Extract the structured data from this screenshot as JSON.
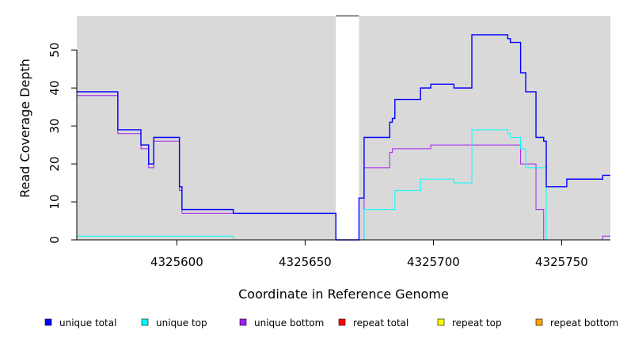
{
  "chart_data": {
    "type": "line",
    "xlabel": "Coordinate in Reference Genome",
    "ylabel": "Read Coverage Depth",
    "xlim": [
      4325561,
      4325769
    ],
    "ylim": [
      0,
      59
    ],
    "x_ticks": [
      4325600,
      4325650,
      4325700,
      4325750
    ],
    "y_ticks": [
      0,
      10,
      20,
      30,
      40,
      50
    ],
    "gap": [
      4325662,
      4325671
    ],
    "grid": false,
    "legend_position": "bottom",
    "series": [
      {
        "name": "unique total",
        "color": "#0000ff",
        "steps": [
          [
            4325561,
            39
          ],
          [
            4325577,
            29
          ],
          [
            4325586,
            25
          ],
          [
            4325589,
            20
          ],
          [
            4325591,
            27
          ],
          [
            4325601,
            14
          ],
          [
            4325602,
            8
          ],
          [
            4325622,
            7
          ],
          [
            4325662,
            0
          ],
          [
            4325671,
            11
          ],
          [
            4325673,
            27
          ],
          [
            4325683,
            31
          ],
          [
            4325684,
            32
          ],
          [
            4325685,
            37
          ],
          [
            4325695,
            40
          ],
          [
            4325699,
            41
          ],
          [
            4325708,
            40
          ],
          [
            4325715,
            54
          ],
          [
            4325729,
            53
          ],
          [
            4325730,
            52
          ],
          [
            4325734,
            44
          ],
          [
            4325736,
            39
          ],
          [
            4325740,
            27
          ],
          [
            4325743,
            26
          ],
          [
            4325744,
            14
          ],
          [
            4325752,
            16
          ],
          [
            4325766,
            17
          ],
          [
            4325769,
            17
          ]
        ]
      },
      {
        "name": "unique top",
        "color": "#00ffff",
        "steps": [
          [
            4325561,
            1
          ],
          [
            4325622,
            0
          ],
          [
            4325671,
            0
          ],
          [
            4325673,
            8
          ],
          [
            4325685,
            13
          ],
          [
            4325695,
            16
          ],
          [
            4325708,
            15
          ],
          [
            4325715,
            29
          ],
          [
            4325729,
            28
          ],
          [
            4325730,
            27
          ],
          [
            4325734,
            24
          ],
          [
            4325736,
            19
          ],
          [
            4325744,
            0
          ],
          [
            4325769,
            0
          ]
        ]
      },
      {
        "name": "unique bottom",
        "color": "#a020f0",
        "steps": [
          [
            4325561,
            38
          ],
          [
            4325577,
            28
          ],
          [
            4325586,
            24
          ],
          [
            4325589,
            19
          ],
          [
            4325591,
            26
          ],
          [
            4325601,
            13
          ],
          [
            4325602,
            7
          ],
          [
            4325622,
            7
          ],
          [
            4325662,
            0
          ],
          [
            4325671,
            0
          ],
          [
            4325673,
            19
          ],
          [
            4325683,
            23
          ],
          [
            4325684,
            24
          ],
          [
            4325699,
            25
          ],
          [
            4325734,
            20
          ],
          [
            4325740,
            8
          ],
          [
            4325743,
            0
          ],
          [
            4325766,
            1
          ],
          [
            4325769,
            1
          ]
        ]
      },
      {
        "name": "repeat total",
        "color": "#ff0000",
        "steps": [
          [
            4325561,
            0
          ],
          [
            4325769,
            0
          ]
        ]
      },
      {
        "name": "repeat top",
        "color": "#ffff00",
        "steps": [
          [
            4325561,
            0
          ],
          [
            4325769,
            0
          ]
        ]
      },
      {
        "name": "repeat bottom",
        "color": "#ffa500",
        "steps": [
          [
            4325561,
            0
          ],
          [
            4325769,
            0
          ]
        ]
      }
    ]
  }
}
